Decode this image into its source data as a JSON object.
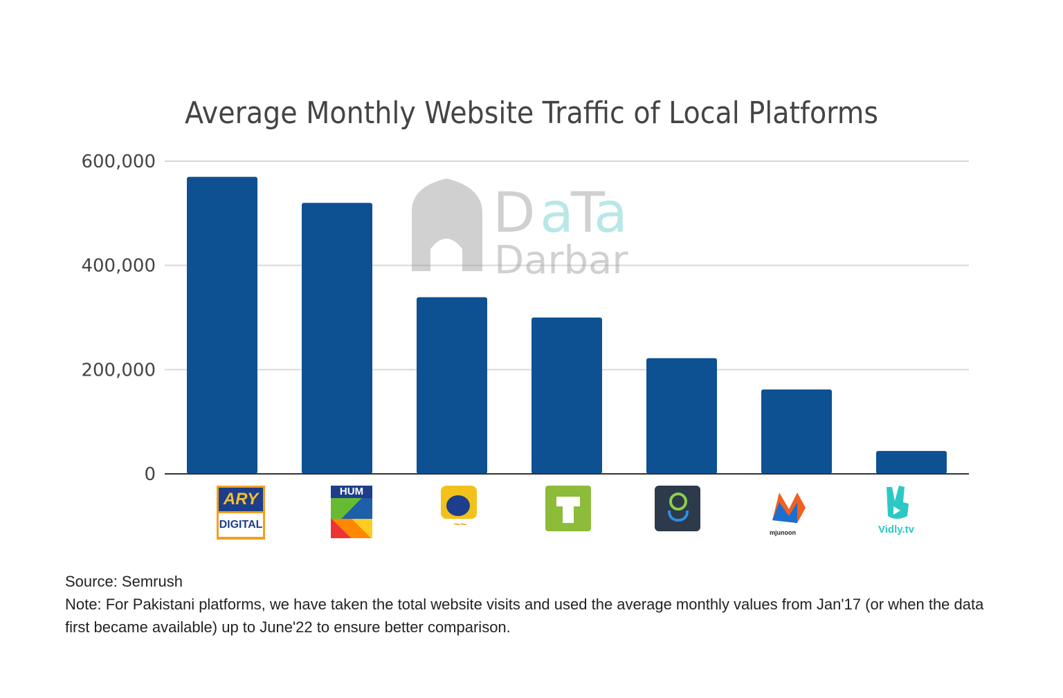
{
  "chart_data": {
    "type": "bar",
    "title": "Average Monthly Website Traffic of Local Platforms",
    "xlabel": "",
    "ylabel": "",
    "categories": [
      "ARY Digital",
      "HUM",
      "Geo",
      "Tapmad",
      "Goonj",
      "mjunoon",
      "Vidly.tv"
    ],
    "values": [
      570000,
      520000,
      339000,
      300000,
      222000,
      162000,
      44000
    ],
    "ylim": [
      0,
      600000
    ],
    "yticks": [
      0,
      200000,
      400000,
      600000
    ],
    "ytick_labels": [
      "0",
      "200,000",
      "400,000",
      "600,000"
    ],
    "grid": true,
    "bar_color": "#0E5193",
    "x_tick_style": "logos"
  },
  "watermark": "Data Darbar",
  "logo_text": {
    "ary": "ARY DIGITAL",
    "hum": "HUM",
    "mjunoon": "mjunoon",
    "vidly": "Vidly.tv"
  },
  "notes": {
    "source": "Source: Semrush",
    "note": "Note: For Pakistani platforms, we have taken the total website visits and used the average monthly values from Jan'17 (or when the data first became available) up to June'22 to ensure better comparison."
  }
}
